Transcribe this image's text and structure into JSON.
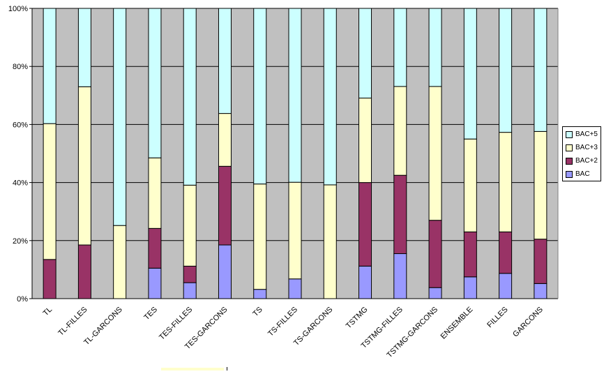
{
  "chart_data": {
    "type": "bar",
    "stacked": true,
    "normalized": true,
    "categories": [
      "TL",
      "TL-FILLES",
      "TL-GARCONS",
      "TES",
      "TES-FILLES",
      "TES-GARCONS",
      "TS",
      "TS-FILLES",
      "TS-GARCONS",
      "TSTMG",
      "TSTMG-FILLES",
      "TSTMG-GARCONS",
      "ENSEMBLE",
      "FILLES",
      "GARCONS"
    ],
    "series": [
      {
        "name": "BAC",
        "color": "#9999ff",
        "values": [
          0,
          0,
          0,
          10.5,
          5.5,
          18.5,
          3.2,
          6.8,
          0,
          11.2,
          15.5,
          3.8,
          7.5,
          8.7,
          5.2
        ]
      },
      {
        "name": "BAC+2",
        "color": "#993366",
        "values": [
          13.5,
          18.5,
          0,
          13.7,
          5.7,
          27.1,
          0,
          0,
          0,
          28.8,
          27.0,
          23.2,
          15.5,
          14.3,
          15.3
        ]
      },
      {
        "name": "BAC+3",
        "color": "#ffffcc",
        "values": [
          46.8,
          54.5,
          25.2,
          24.3,
          27.9,
          18.2,
          36.3,
          33.3,
          39.2,
          29.1,
          30.6,
          46.1,
          32.0,
          34.3,
          37.1
        ]
      },
      {
        "name": "BAC+5",
        "color": "#ccffff",
        "values": [
          39.7,
          27.0,
          74.8,
          51.5,
          60.9,
          36.2,
          60.5,
          59.9,
          60.8,
          30.9,
          26.9,
          26.9,
          45.0,
          42.7,
          42.4
        ]
      }
    ],
    "ylim": [
      0,
      100
    ],
    "yticks": [
      "0%",
      "20%",
      "40%",
      "60%",
      "80%",
      "100%"
    ],
    "grid": true,
    "plot_background": "#c0c0c0",
    "legend": {
      "position": "right",
      "entries": [
        "BAC+5",
        "BAC+3",
        "BAC+2",
        "BAC"
      ]
    }
  }
}
